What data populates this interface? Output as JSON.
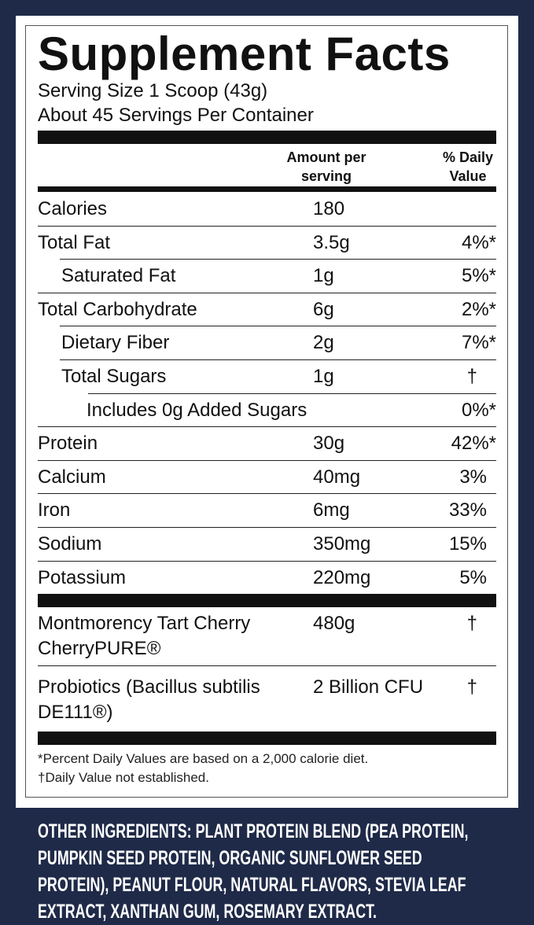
{
  "colors": {
    "background": "#1f2a48",
    "panel": "#ffffff",
    "text": "#111111"
  },
  "title": "Supplement Facts",
  "serving_size": "Serving Size 1 Scoop (43g)",
  "servings_per_container": "About 45 Servings Per Container",
  "header": {
    "amount": "Amount per serving",
    "dv": "% Daily Value"
  },
  "rows": [
    {
      "label": "Calories",
      "amount": "180",
      "dv": ""
    },
    {
      "label": "Total Fat",
      "amount": "3.5g",
      "dv": "4%*"
    },
    {
      "label": "Saturated Fat",
      "amount": "1g",
      "dv": "5%*"
    },
    {
      "label": "Total Carbohydrate",
      "amount": "6g",
      "dv": "2%*"
    },
    {
      "label": "Dietary Fiber",
      "amount": "2g",
      "dv": "7%*"
    },
    {
      "label": "Total Sugars",
      "amount": "1g",
      "dv": "†"
    },
    {
      "label": "Includes 0g Added Sugars",
      "amount": "",
      "dv": "0%*"
    },
    {
      "label": "Protein",
      "amount": "30g",
      "dv": "42%*"
    },
    {
      "label": "Calcium",
      "amount": "40mg",
      "dv": "3%"
    },
    {
      "label": "Iron",
      "amount": "6mg",
      "dv": "33%"
    },
    {
      "label": "Sodium",
      "amount": "350mg",
      "dv": "15%"
    },
    {
      "label": "Potassium",
      "amount": "220mg",
      "dv": "5%"
    }
  ],
  "other_rows": [
    {
      "label": "Montmorency Tart Cherry CherryPURE®",
      "amount": "480g",
      "dv": "†"
    },
    {
      "label": "Probiotics (Bacillus subtilis DE111®)",
      "amount": "2 Billion CFU",
      "dv": "†"
    }
  ],
  "footnotes": [
    "*Percent Daily Values are based on a 2,000 calorie diet.",
    "†Daily Value not established."
  ],
  "other_ingredients": "OTHER INGREDIENTS: PLANT PROTEIN BLEND (PEA PROTEIN, PUMPKIN SEED PROTEIN, ORGANIC SUNFLOWER SEED PROTEIN), PEANUT FLOUR, NATURAL FLAVORS, STEVIA LEAF EXTRACT, XANTHAN GUM, ROSEMARY EXTRACT."
}
